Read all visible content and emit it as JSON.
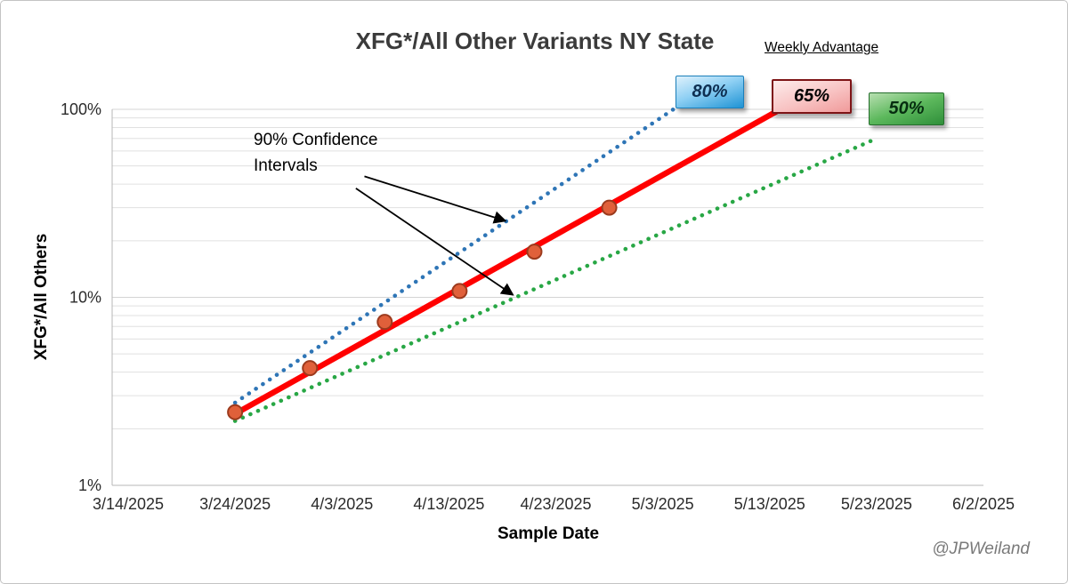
{
  "chart_data": {
    "type": "scatter",
    "title": "XFG*/All Other Variants NY State",
    "xlabel": "Sample Date",
    "ylabel": "XFG*/All Others",
    "y_scale": "log",
    "grid": "log minor gridlines on",
    "legend": "none",
    "y_axis": {
      "range_pct": [
        1,
        100
      ],
      "ticks": [
        {
          "label": "100%",
          "value": 100
        },
        {
          "label": "10%",
          "value": 10
        },
        {
          "label": "1%",
          "value": 1
        }
      ],
      "minor_gridlines_pct": [
        2,
        3,
        4,
        5,
        6,
        7,
        8,
        9,
        20,
        30,
        40,
        50,
        60,
        70,
        80,
        90
      ]
    },
    "x_axis": {
      "range_days": [
        0,
        80
      ],
      "tick_step_days": 10,
      "tick_labels": [
        "3/14/2025",
        "3/24/2025",
        "4/3/2025",
        "4/13/2025",
        "4/23/2025",
        "5/3/2025",
        "5/13/2025",
        "5/23/2025",
        "6/2/2025"
      ]
    },
    "series": [
      {
        "name": "upper-90ci",
        "type": "dotted-line",
        "color": "#2E75B6",
        "weekly_advantage": "80%",
        "start": {
          "day": 10,
          "pct": 2.75
        },
        "end": {
          "day": 51,
          "pct": 100
        }
      },
      {
        "name": "lower-90ci",
        "type": "dotted-line",
        "color": "#28A745",
        "weekly_advantage": "50%",
        "start": {
          "day": 10,
          "pct": 2.2
        },
        "end": {
          "day": 70,
          "pct": 70
        }
      },
      {
        "name": "trend-fit",
        "type": "line",
        "color": "#FF0000",
        "weekly_advantage": "65%",
        "start": {
          "day": 10,
          "pct": 2.4
        },
        "end": {
          "day": 61,
          "pct": 100
        }
      },
      {
        "name": "observed-points",
        "type": "scatter",
        "marker_fill": "#E0603A",
        "marker_border": "#9C3A1D",
        "data": [
          {
            "date": "3/24/2025",
            "day": 10,
            "pct": 2.45
          },
          {
            "date": "3/31/2025",
            "day": 17,
            "pct": 4.2
          },
          {
            "date": "4/7/2025",
            "day": 24,
            "pct": 7.4
          },
          {
            "date": "4/14/2025",
            "day": 31,
            "pct": 10.8
          },
          {
            "date": "4/21/2025",
            "day": 38,
            "pct": 17.5
          },
          {
            "date": "4/28/2025",
            "day": 45,
            "pct": 30
          }
        ]
      }
    ],
    "annotation": {
      "lines": [
        "90% Confidence",
        "Intervals"
      ],
      "arrows": [
        {
          "from": {
            "day": 22.1,
            "pct": 44
          },
          "to": {
            "day": 35.3,
            "pct": 25.5
          }
        },
        {
          "from": {
            "day": 21.3,
            "pct": 38
          },
          "to": {
            "day": 36.0,
            "pct": 10.3
          }
        }
      ]
    }
  },
  "weekly_advantage": {
    "label": "Weekly Advantage",
    "badges": [
      {
        "value": "80%",
        "scheme": "blue"
      },
      {
        "value": "65%",
        "scheme": "red"
      },
      {
        "value": "50%",
        "scheme": "green"
      }
    ]
  },
  "watermark": "@JPWeiland"
}
